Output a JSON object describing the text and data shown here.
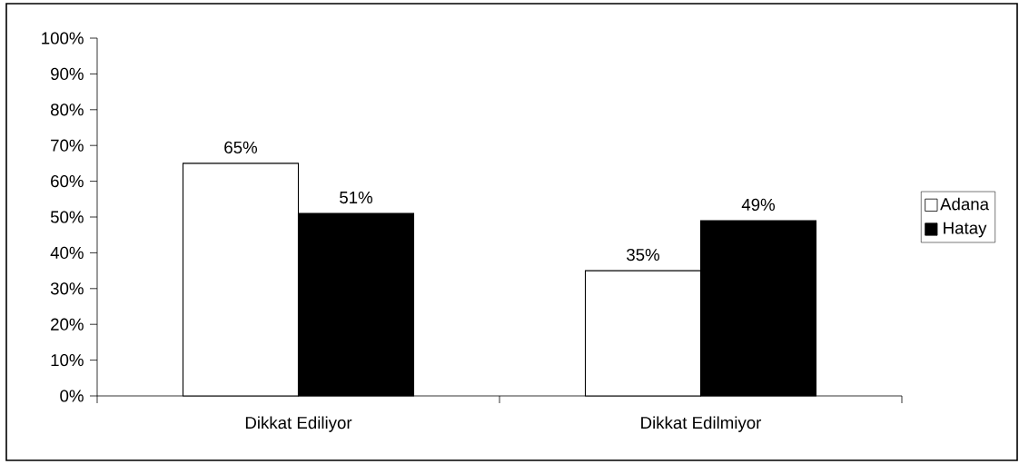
{
  "chart_data": {
    "type": "bar",
    "categories": [
      "Dikkat Ediliyor",
      "Dikkat Edilmiyor"
    ],
    "series": [
      {
        "name": "Adana",
        "color": "#ffffff",
        "values": [
          65,
          35
        ],
        "value_labels": [
          "65%",
          "35%"
        ]
      },
      {
        "name": "Hatay",
        "color": "#000000",
        "values": [
          51,
          49
        ],
        "value_labels": [
          "51%",
          "49%"
        ]
      }
    ],
    "ylim": [
      0,
      100
    ],
    "yticks": [
      {
        "value": 0,
        "label": "0%"
      },
      {
        "value": 10,
        "label": "10%"
      },
      {
        "value": 20,
        "label": "20%"
      },
      {
        "value": 30,
        "label": "30%"
      },
      {
        "value": 40,
        "label": "40%"
      },
      {
        "value": 50,
        "label": "50%"
      },
      {
        "value": 60,
        "label": "60%"
      },
      {
        "value": 70,
        "label": "70%"
      },
      {
        "value": 80,
        "label": "80%"
      },
      {
        "value": 90,
        "label": "90%"
      },
      {
        "value": 100,
        "label": "100%"
      }
    ],
    "grid": false,
    "legend": "right"
  }
}
